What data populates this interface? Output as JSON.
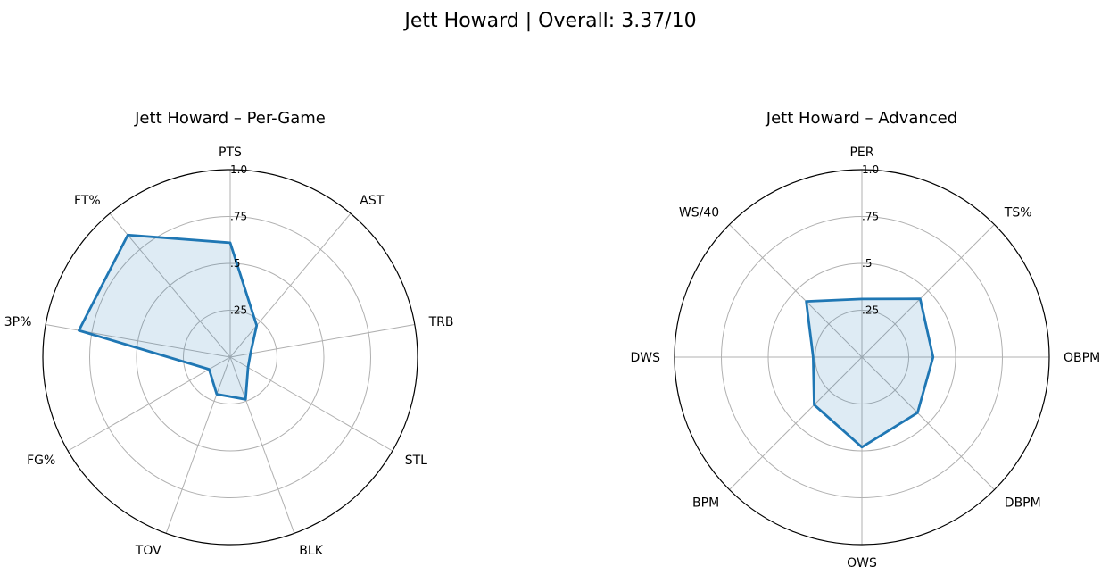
{
  "figure": {
    "suptitle": "Jett Howard | Overall: 3.37/10"
  },
  "colors": {
    "series_line": "#1f77b4",
    "series_fill": "#1f77b4",
    "grid": "#b0b0b0",
    "spine": "#000000"
  },
  "chart_data": [
    {
      "type": "radar",
      "title": "Jett Howard – Per-Game",
      "categories": [
        "PTS",
        "AST",
        "TRB",
        "STL",
        "BLK",
        "TOV",
        "FG%",
        "3P%",
        "FT%"
      ],
      "radial_ticks": [
        ".25",
        ".5",
        ".75",
        "1.0"
      ],
      "radial_tick_values": [
        0.25,
        0.5,
        0.75,
        1.0
      ],
      "rlim": [
        0,
        1
      ],
      "grid": true,
      "series": [
        {
          "values": [
            0.61,
            0.22,
            0.11,
            0.11,
            0.24,
            0.21,
            0.13,
            0.82,
            0.85
          ]
        }
      ]
    },
    {
      "type": "radar",
      "title": "Jett Howard – Advanced",
      "categories": [
        "PER",
        "TS%",
        "OBPM",
        "DBPM",
        "OWS",
        "BPM",
        "DWS",
        "WS/40"
      ],
      "radial_ticks": [
        ".25",
        ".5",
        ".75",
        "1.0"
      ],
      "radial_tick_values": [
        0.25,
        0.5,
        0.75,
        1.0
      ],
      "rlim": [
        0,
        1
      ],
      "grid": true,
      "series": [
        {
          "values": [
            0.31,
            0.44,
            0.38,
            0.42,
            0.48,
            0.36,
            0.26,
            0.42
          ]
        }
      ]
    }
  ]
}
